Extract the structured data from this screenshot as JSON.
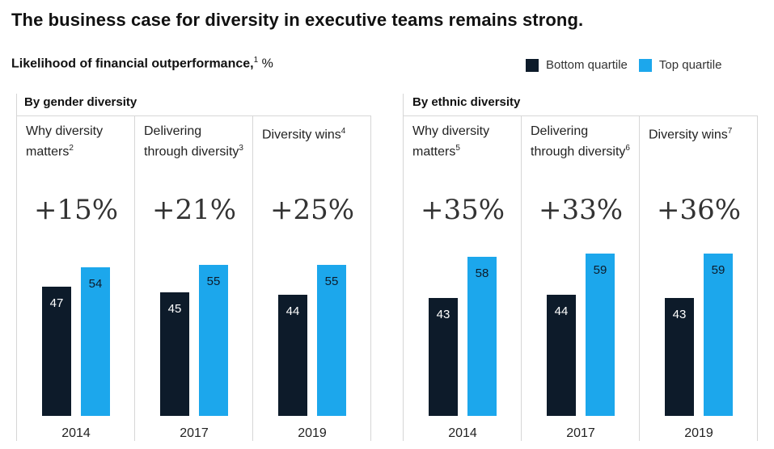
{
  "title": "The business case for diversity in executive teams remains strong.",
  "subtitle": "Likelihood of financial outperformance,",
  "subtitle_note": "1",
  "subtitle_unit": " %",
  "legend": [
    {
      "label": "Bottom quartile",
      "color": "#0d1b2a"
    },
    {
      "label": "Top quartile",
      "color": "#1ca7ec"
    }
  ],
  "colors": {
    "bottom": "#0d1b2a",
    "top": "#1ca7ec",
    "divider": "#d6d6d6"
  },
  "chart_data": {
    "type": "bar",
    "series": [
      {
        "name": "Bottom quartile"
      },
      {
        "name": "Top quartile"
      }
    ],
    "groups": [
      {
        "label": "By gender diversity",
        "studies": [
          {
            "name": "Why diversity matters",
            "note": "2",
            "year": "2014",
            "diff": "+15%",
            "bottom": 47,
            "top": 54
          },
          {
            "name": "Delivering through diversity",
            "note": "3",
            "year": "2017",
            "diff": "+21%",
            "bottom": 45,
            "top": 55
          },
          {
            "name": "Diversity wins",
            "note": "4",
            "year": "2019",
            "diff": "+25%",
            "bottom": 44,
            "top": 55
          }
        ]
      },
      {
        "label": "By ethnic diversity",
        "studies": [
          {
            "name": "Why diversity matters",
            "note": "5",
            "year": "2014",
            "diff": "+35%",
            "bottom": 43,
            "top": 58
          },
          {
            "name": "Delivering through diversity",
            "note": "6",
            "year": "2017",
            "diff": "+33%",
            "bottom": 44,
            "top": 59
          },
          {
            "name": "Diversity wins",
            "note": "7",
            "year": "2019",
            "diff": "+36%",
            "bottom": 43,
            "top": 59
          }
        ]
      }
    ],
    "ylim": [
      0,
      60
    ]
  }
}
